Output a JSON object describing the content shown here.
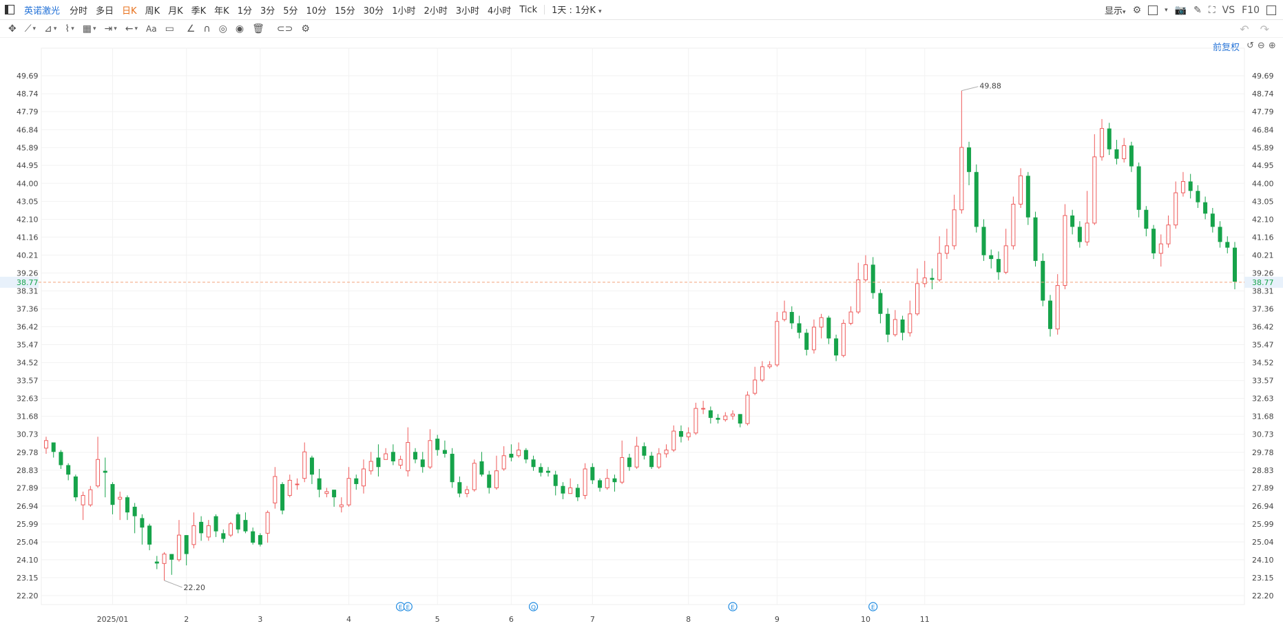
{
  "topbar": {
    "stock_name": "英诺激光",
    "periods": [
      "分时",
      "多日",
      "日K",
      "周K",
      "月K",
      "季K",
      "年K",
      "1分",
      "3分",
      "5分",
      "10分",
      "15分",
      "30分",
      "1小时",
      "2小时",
      "3小时",
      "4小时",
      "Tick"
    ],
    "active_period": "日K",
    "multi_period": "1天 : 1分K",
    "display_label": "显示",
    "vs_label": "VS",
    "f10_label": "F10"
  },
  "adjust_label": "前复权",
  "colors": {
    "up": "#ee5a5a",
    "down": "#16a34a",
    "accent": "#1f6fd6",
    "current_line": "#f2a27a",
    "event": "#1f8ae0"
  },
  "chart_data": {
    "type": "candlestick",
    "y_ticks": [
      22.2,
      23.15,
      24.1,
      25.04,
      25.99,
      26.94,
      27.89,
      28.83,
      29.78,
      30.73,
      31.68,
      32.63,
      33.57,
      34.52,
      35.47,
      36.42,
      37.36,
      38.31,
      39.26,
      40.21,
      41.16,
      42.1,
      43.05,
      44.0,
      44.95,
      45.89,
      46.84,
      47.79,
      48.74,
      49.69
    ],
    "x_ticks": [
      {
        "label": "2025/01",
        "index": 9
      },
      {
        "label": "2",
        "index": 19
      },
      {
        "label": "3",
        "index": 29
      },
      {
        "label": "4",
        "index": 41
      },
      {
        "label": "5",
        "index": 53
      },
      {
        "label": "6",
        "index": 63
      },
      {
        "label": "7",
        "index": 74
      },
      {
        "label": "8",
        "index": 87
      },
      {
        "label": "9",
        "index": 99
      },
      {
        "label": "10",
        "index": 111
      },
      {
        "label": "11",
        "index": 119
      }
    ],
    "current_price": "38.77",
    "max_label": "49.88",
    "min_label": "22.20",
    "candles": [
      [
        30.0,
        30.4,
        30.6,
        29.7
      ],
      [
        30.3,
        29.8,
        30.3,
        29.5
      ],
      [
        29.8,
        29.1,
        29.9,
        28.9
      ],
      [
        29.1,
        28.6,
        29.2,
        28.3
      ],
      [
        28.5,
        27.4,
        28.6,
        27.2
      ],
      [
        27.0,
        27.5,
        27.7,
        26.2
      ],
      [
        27.0,
        27.8,
        28.0,
        26.9
      ],
      [
        28.0,
        29.4,
        30.6,
        27.9
      ],
      [
        28.8,
        28.7,
        29.5,
        27.4
      ],
      [
        28.1,
        27.0,
        28.2,
        26.5
      ],
      [
        27.3,
        27.4,
        27.7,
        26.2
      ],
      [
        27.4,
        26.6,
        27.5,
        26.2
      ],
      [
        26.9,
        26.4,
        27.1,
        25.5
      ],
      [
        26.3,
        25.8,
        26.5,
        24.9
      ],
      [
        25.9,
        24.9,
        26.0,
        24.6
      ],
      [
        24.0,
        23.9,
        24.3,
        23.6
      ],
      [
        23.9,
        24.4,
        24.5,
        23.0
      ],
      [
        24.4,
        24.1,
        24.4,
        23.3
      ],
      [
        24.1,
        25.4,
        26.2,
        24.0
      ],
      [
        25.4,
        24.4,
        25.4,
        23.8
      ],
      [
        24.9,
        25.9,
        26.6,
        24.7
      ],
      [
        26.1,
        25.5,
        26.4,
        25.1
      ],
      [
        25.3,
        25.9,
        26.2,
        25.1
      ],
      [
        26.4,
        25.6,
        26.5,
        25.3
      ],
      [
        25.5,
        25.2,
        25.7,
        25.0
      ],
      [
        25.4,
        26.0,
        26.1,
        25.3
      ],
      [
        26.5,
        25.7,
        26.6,
        25.5
      ],
      [
        26.2,
        25.6,
        26.6,
        25.5
      ],
      [
        25.6,
        25.0,
        25.8,
        24.9
      ],
      [
        25.4,
        24.9,
        25.5,
        24.8
      ],
      [
        25.5,
        26.6,
        26.7,
        25.0
      ],
      [
        27.1,
        28.5,
        29.0,
        26.8
      ],
      [
        28.1,
        26.7,
        28.2,
        26.5
      ],
      [
        27.5,
        28.3,
        28.6,
        27.4
      ],
      [
        28.1,
        28.1,
        28.4,
        27.8
      ],
      [
        28.4,
        29.8,
        30.3,
        28.2
      ],
      [
        29.5,
        28.6,
        29.6,
        28.1
      ],
      [
        28.4,
        27.8,
        28.9,
        27.4
      ],
      [
        27.6,
        27.7,
        27.9,
        27.4
      ],
      [
        27.8,
        27.4,
        27.8,
        26.9
      ],
      [
        26.9,
        27.0,
        27.4,
        26.6
      ],
      [
        27.0,
        28.4,
        29.0,
        26.9
      ],
      [
        28.4,
        28.1,
        28.6,
        27.8
      ],
      [
        28.0,
        28.9,
        29.4,
        27.6
      ],
      [
        28.8,
        29.3,
        29.8,
        28.6
      ],
      [
        29.5,
        29.0,
        30.2,
        28.5
      ],
      [
        29.4,
        29.7,
        30.0,
        29.4
      ],
      [
        29.8,
        29.3,
        30.2,
        29.1
      ],
      [
        29.1,
        29.4,
        29.6,
        28.9
      ],
      [
        28.8,
        30.3,
        31.1,
        28.5
      ],
      [
        29.8,
        29.4,
        30.0,
        29.2
      ],
      [
        29.4,
        29.0,
        29.8,
        28.7
      ],
      [
        29.0,
        30.4,
        31.0,
        28.9
      ],
      [
        30.5,
        29.9,
        30.7,
        29.6
      ],
      [
        29.9,
        29.7,
        30.4,
        29.5
      ],
      [
        29.7,
        28.2,
        30.0,
        27.9
      ],
      [
        28.2,
        27.6,
        28.5,
        27.4
      ],
      [
        27.6,
        27.8,
        28.0,
        27.4
      ],
      [
        27.8,
        29.2,
        29.4,
        27.7
      ],
      [
        29.3,
        28.6,
        29.8,
        28.5
      ],
      [
        28.6,
        27.9,
        28.8,
        27.6
      ],
      [
        27.9,
        28.8,
        29.6,
        27.8
      ],
      [
        28.9,
        29.6,
        30.1,
        28.8
      ],
      [
        29.7,
        29.5,
        30.2,
        29.3
      ],
      [
        29.6,
        29.9,
        30.3,
        29.5
      ],
      [
        29.9,
        29.4,
        30.0,
        29.2
      ],
      [
        29.4,
        29.0,
        29.6,
        28.8
      ],
      [
        29.0,
        28.7,
        29.2,
        28.5
      ],
      [
        28.8,
        28.7,
        29.0,
        28.5
      ],
      [
        28.6,
        28.0,
        28.8,
        27.5
      ],
      [
        28.0,
        27.6,
        28.2,
        27.3
      ],
      [
        27.6,
        27.9,
        28.4,
        27.6
      ],
      [
        27.9,
        27.4,
        28.1,
        27.2
      ],
      [
        27.5,
        28.9,
        29.2,
        27.3
      ],
      [
        29.0,
        28.3,
        29.2,
        28.1
      ],
      [
        28.3,
        27.9,
        28.4,
        27.7
      ],
      [
        27.9,
        28.4,
        28.9,
        27.8
      ],
      [
        28.4,
        28.2,
        28.6,
        27.7
      ],
      [
        28.2,
        29.5,
        30.4,
        28.1
      ],
      [
        29.5,
        29.0,
        29.7,
        28.8
      ],
      [
        29.0,
        30.1,
        30.6,
        28.9
      ],
      [
        30.1,
        29.6,
        30.3,
        29.4
      ],
      [
        29.6,
        29.0,
        29.8,
        28.9
      ],
      [
        29.0,
        29.7,
        30.0,
        28.9
      ],
      [
        29.7,
        29.9,
        30.2,
        29.5
      ],
      [
        29.9,
        30.9,
        31.2,
        29.8
      ],
      [
        30.9,
        30.6,
        31.2,
        30.3
      ],
      [
        30.6,
        30.8,
        31.1,
        30.4
      ],
      [
        30.8,
        32.1,
        32.4,
        30.7
      ],
      [
        32.1,
        32.1,
        32.5,
        31.8
      ],
      [
        32.0,
        31.6,
        32.2,
        31.3
      ],
      [
        31.6,
        31.5,
        31.8,
        31.3
      ],
      [
        31.5,
        31.7,
        31.9,
        31.4
      ],
      [
        31.7,
        31.8,
        32.0,
        31.5
      ],
      [
        31.8,
        31.3,
        31.8,
        31.1
      ],
      [
        31.3,
        32.8,
        33.0,
        31.2
      ],
      [
        32.9,
        33.6,
        34.3,
        32.8
      ],
      [
        33.6,
        34.3,
        34.6,
        33.5
      ],
      [
        34.3,
        34.4,
        34.6,
        34.2
      ],
      [
        34.4,
        36.7,
        37.2,
        34.3
      ],
      [
        36.8,
        37.2,
        37.8,
        36.7
      ],
      [
        37.2,
        36.6,
        37.5,
        36.3
      ],
      [
        36.6,
        36.1,
        37.0,
        35.8
      ],
      [
        36.1,
        35.2,
        36.3,
        34.9
      ],
      [
        35.2,
        36.4,
        36.8,
        35.0
      ],
      [
        36.4,
        36.9,
        37.1,
        35.8
      ],
      [
        36.9,
        35.8,
        37.0,
        35.5
      ],
      [
        35.8,
        34.9,
        36.0,
        34.6
      ],
      [
        34.9,
        36.6,
        36.8,
        34.8
      ],
      [
        36.6,
        37.2,
        37.5,
        36.5
      ],
      [
        37.2,
        38.9,
        39.8,
        37.1
      ],
      [
        38.9,
        39.7,
        40.2,
        38.8
      ],
      [
        39.7,
        38.2,
        40.1,
        37.9
      ],
      [
        38.2,
        37.1,
        38.4,
        36.6
      ],
      [
        37.1,
        36.0,
        37.4,
        35.6
      ],
      [
        36.0,
        36.8,
        37.3,
        35.9
      ],
      [
        36.8,
        36.1,
        37.0,
        35.7
      ],
      [
        36.1,
        37.1,
        37.8,
        35.9
      ],
      [
        37.1,
        38.7,
        39.5,
        37.0
      ],
      [
        38.7,
        39.0,
        39.9,
        38.5
      ],
      [
        39.0,
        38.9,
        39.5,
        38.4
      ],
      [
        38.9,
        40.3,
        41.2,
        38.8
      ],
      [
        40.3,
        40.7,
        41.6,
        40.0
      ],
      [
        40.7,
        42.6,
        43.4,
        40.5
      ],
      [
        42.6,
        45.9,
        48.9,
        42.4
      ],
      [
        45.9,
        44.6,
        46.2,
        43.9
      ],
      [
        44.6,
        41.7,
        45.0,
        41.4
      ],
      [
        41.7,
        40.2,
        42.1,
        39.9
      ],
      [
        40.2,
        40.0,
        40.5,
        39.5
      ],
      [
        40.0,
        39.3,
        40.4,
        38.9
      ],
      [
        39.3,
        40.7,
        41.6,
        39.2
      ],
      [
        40.7,
        42.9,
        43.3,
        40.5
      ],
      [
        42.9,
        44.4,
        44.8,
        42.7
      ],
      [
        44.4,
        42.2,
        44.6,
        41.8
      ],
      [
        42.2,
        39.9,
        42.5,
        39.6
      ],
      [
        39.9,
        37.8,
        40.3,
        37.5
      ],
      [
        37.8,
        36.3,
        38.1,
        35.9
      ],
      [
        36.3,
        38.6,
        39.2,
        36.0
      ],
      [
        38.6,
        42.3,
        42.9,
        38.4
      ],
      [
        42.3,
        41.7,
        42.6,
        41.3
      ],
      [
        41.7,
        40.9,
        42.0,
        40.6
      ],
      [
        40.9,
        41.9,
        43.6,
        40.7
      ],
      [
        41.9,
        45.4,
        46.6,
        41.8
      ],
      [
        45.4,
        46.9,
        47.4,
        45.2
      ],
      [
        46.9,
        45.8,
        47.2,
        45.5
      ],
      [
        45.8,
        45.3,
        46.3,
        45.0
      ],
      [
        45.3,
        46.0,
        46.4,
        45.1
      ],
      [
        46.0,
        44.9,
        46.2,
        44.6
      ],
      [
        44.9,
        42.6,
        45.1,
        42.2
      ],
      [
        42.6,
        41.6,
        42.8,
        41.2
      ],
      [
        41.6,
        40.3,
        41.8,
        40.0
      ],
      [
        40.3,
        40.8,
        41.3,
        39.6
      ],
      [
        40.8,
        41.8,
        42.3,
        40.6
      ],
      [
        41.8,
        43.5,
        44.1,
        41.6
      ],
      [
        43.5,
        44.1,
        44.6,
        43.3
      ],
      [
        44.1,
        43.6,
        44.5,
        43.2
      ],
      [
        43.6,
        43.0,
        43.9,
        42.7
      ],
      [
        43.0,
        42.4,
        43.3,
        42.1
      ],
      [
        42.4,
        41.7,
        42.7,
        41.4
      ],
      [
        41.7,
        40.9,
        42.0,
        40.6
      ],
      [
        40.9,
        40.6,
        41.2,
        40.3
      ],
      [
        40.6,
        38.8,
        40.9,
        38.4
      ]
    ],
    "event_markers": [
      {
        "index": 48,
        "label": "E"
      },
      {
        "index": 49,
        "label": "E"
      },
      {
        "index": 66,
        "label": "Q"
      },
      {
        "index": 93,
        "label": "E"
      },
      {
        "index": 112,
        "label": "E"
      }
    ]
  }
}
